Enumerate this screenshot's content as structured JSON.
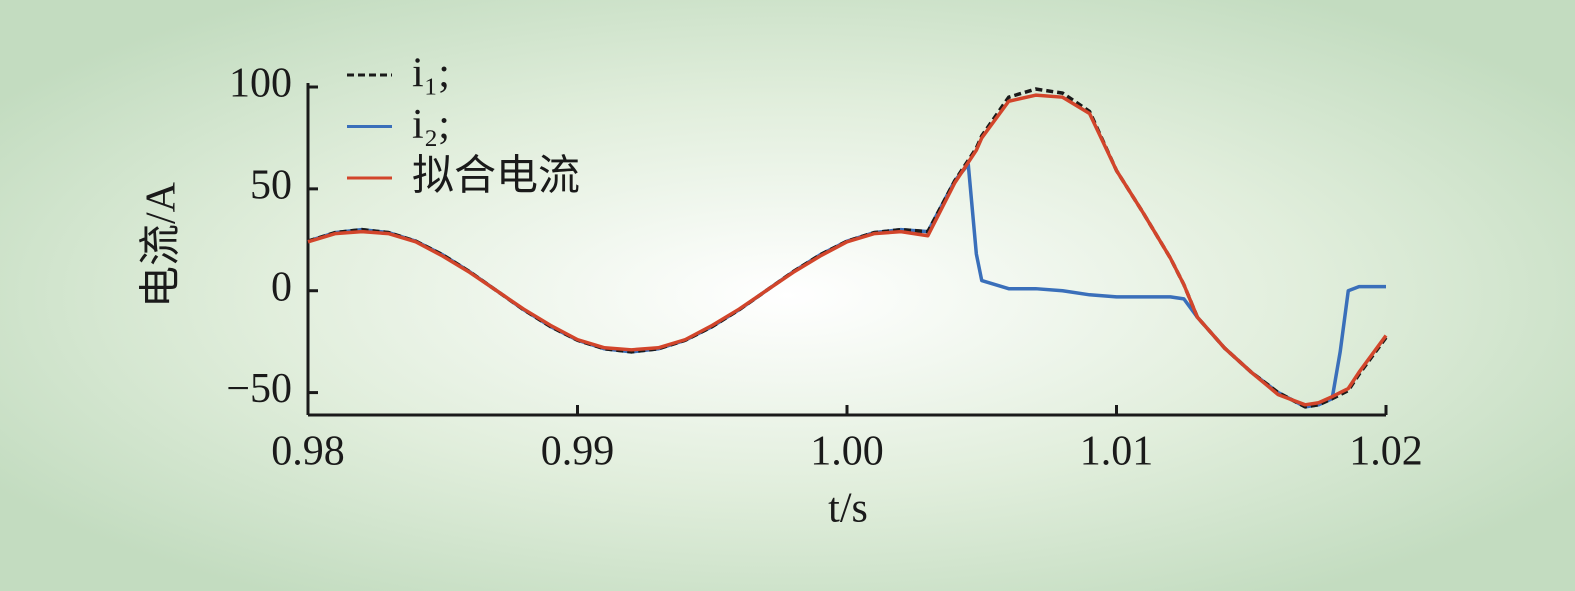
{
  "chart_data": {
    "type": "line",
    "y_label": "电流/A",
    "x_label": "t/s",
    "x": [
      0.98,
      0.981,
      0.982,
      0.983,
      0.984,
      0.985,
      0.986,
      0.987,
      0.988,
      0.989,
      0.99,
      0.991,
      0.992,
      0.993,
      0.994,
      0.995,
      0.996,
      0.997,
      0.998,
      0.999,
      1.0,
      1.001,
      1.002,
      1.003,
      1.004,
      1.0045,
      1.0048,
      1.005,
      1.006,
      1.007,
      1.008,
      1.009,
      1.01,
      1.011,
      1.012,
      1.0125,
      1.013,
      1.014,
      1.015,
      1.016,
      1.017,
      1.0175,
      1.018,
      1.0183,
      1.0186,
      1.019,
      1.02
    ],
    "series": [
      {
        "name": "i₁;",
        "color": "#1a1a1a",
        "dash": true,
        "values": [
          24.3,
          28.5,
          30,
          28.5,
          24.3,
          17.6,
          9.3,
          0,
          -9.3,
          -17.6,
          -24.3,
          -28.5,
          -30,
          -28.5,
          -24.3,
          -17.6,
          -9.3,
          0,
          9.3,
          17.6,
          24.3,
          28.5,
          30,
          29,
          54,
          64,
          70,
          76,
          95,
          99,
          97,
          88,
          59,
          38,
          16,
          3,
          -13,
          -28,
          -40,
          -50,
          -57,
          -56,
          -53,
          -51,
          -49,
          -41,
          -23
        ]
      },
      {
        "name": "i₂;",
        "color": "#3a6fba",
        "dash": false,
        "values": [
          24.3,
          28.5,
          30,
          28.5,
          24.3,
          17.6,
          9.3,
          0,
          -9.3,
          -17.6,
          -24.3,
          -28.5,
          -30,
          -28.5,
          -24.3,
          -17.6,
          -9.3,
          0,
          9.3,
          17.6,
          24.3,
          28.5,
          30,
          29,
          54,
          62,
          18,
          5,
          1,
          1,
          0,
          -2,
          -3,
          -3,
          -3,
          -4,
          -13,
          -28,
          -40,
          -50,
          -57,
          -56,
          -53,
          -30,
          0,
          2,
          2
        ]
      },
      {
        "name": "拟合电流",
        "color": "#d2452b",
        "dash": false,
        "values": [
          24,
          28,
          29,
          28,
          24,
          17,
          9,
          0,
          -9,
          -17,
          -24,
          -28,
          -29,
          -28,
          -24,
          -17,
          -9,
          0,
          9,
          17,
          24,
          28,
          29,
          27,
          53,
          63,
          69,
          75,
          93,
          96,
          95,
          87,
          59,
          38,
          16,
          3,
          -13,
          -28,
          -40,
          -51,
          -56,
          -55,
          -52,
          -50,
          -48,
          -40,
          -22
        ]
      }
    ],
    "xlim": [
      0.98,
      1.02
    ],
    "xticks": [
      0.98,
      0.99,
      {
        "value": 1.0,
        "label": "1.00"
      },
      1.01,
      1.02
    ],
    "ylim": [
      -61,
      100
    ],
    "yticks": [
      {
        "value": -50,
        "label": "−50"
      },
      0,
      50,
      100
    ],
    "legend": "upper left",
    "grid": false
  }
}
